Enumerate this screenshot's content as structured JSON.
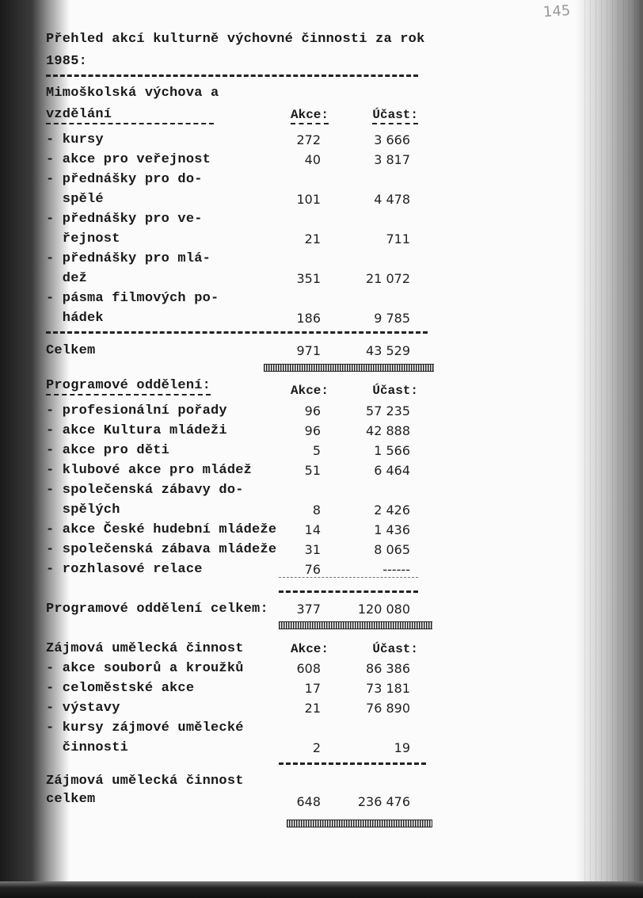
{
  "handwritten_page_number": "145",
  "title": [
    "Přehled akcí kulturně výchovné činnosti za rok",
    "1985:"
  ],
  "sections": [
    {
      "heading": [
        "Mimoškolská výchova a",
        "vzdělání"
      ],
      "col_akce": "Akce:",
      "col_ucast": "Účast:",
      "items": [
        {
          "label": [
            "- kursy"
          ],
          "akce": "272",
          "ucast": "3 666"
        },
        {
          "label": [
            "- akce pro veřejnost"
          ],
          "akce": "40",
          "ucast": "3 817"
        },
        {
          "label": [
            "- přednášky pro do-",
            "  spělé"
          ],
          "akce": "101",
          "ucast": "4 478"
        },
        {
          "label": [
            "- přednášky pro ve-",
            "  řejnost"
          ],
          "akce": "21",
          "ucast": "711"
        },
        {
          "label": [
            "- přednášky pro mlá-",
            "  dež"
          ],
          "akce": "351",
          "ucast": "21 072"
        },
        {
          "label": [
            "- pásma filmových po-",
            "  hádek"
          ],
          "akce": "186",
          "ucast": "9 785"
        }
      ],
      "total_label": [
        "Celkem"
      ],
      "total_akce": "971",
      "total_ucast": "43 529"
    },
    {
      "heading": [
        "Programové oddělení:"
      ],
      "col_akce": "Akce:",
      "col_ucast": "Účast:",
      "items": [
        {
          "label": [
            "- profesionální pořady"
          ],
          "akce": "96",
          "ucast": "57 235"
        },
        {
          "label": [
            "- akce Kultura mládeži"
          ],
          "akce": "96",
          "ucast": "42 888"
        },
        {
          "label": [
            "- akce pro děti"
          ],
          "akce": "5",
          "ucast": "1 566"
        },
        {
          "label": [
            "- klubové akce pro mládež"
          ],
          "akce": "51",
          "ucast": "6 464"
        },
        {
          "label": [
            "- společenská zábavy do-",
            "  spělých"
          ],
          "akce": "8",
          "ucast": "2 426"
        },
        {
          "label": [
            "- akce České hudební mládeže"
          ],
          "akce": "14",
          "ucast": "1 436"
        },
        {
          "label": [
            "- společenská zábava mládeže"
          ],
          "akce": "31",
          "ucast": "8 065"
        },
        {
          "label": [
            "- rozhlasové relace"
          ],
          "akce": "76",
          "ucast": "------"
        }
      ],
      "total_label": [
        "Programové oddělení celkem:"
      ],
      "total_akce": "377",
      "total_ucast": "120 080"
    },
    {
      "heading": [
        "Zájmová umělecká činnost"
      ],
      "col_akce": "Akce:",
      "col_ucast": "Účast:",
      "items": [
        {
          "label": [
            "- akce souborů a kroužků"
          ],
          "akce": "608",
          "ucast": "86 386"
        },
        {
          "label": [
            "- celoměstské akce"
          ],
          "akce": "17",
          "ucast": "73 181"
        },
        {
          "label": [
            "- výstavy"
          ],
          "akce": "21",
          "ucast": "76 890"
        },
        {
          "label": [
            "- kursy zájmové umělecké",
            "  činnosti"
          ],
          "akce": "2",
          "ucast": "19"
        }
      ],
      "total_label": [
        "Zájmová umělecká činnost",
        "celkem"
      ],
      "total_akce": "648",
      "total_ucast": "236 476"
    }
  ]
}
